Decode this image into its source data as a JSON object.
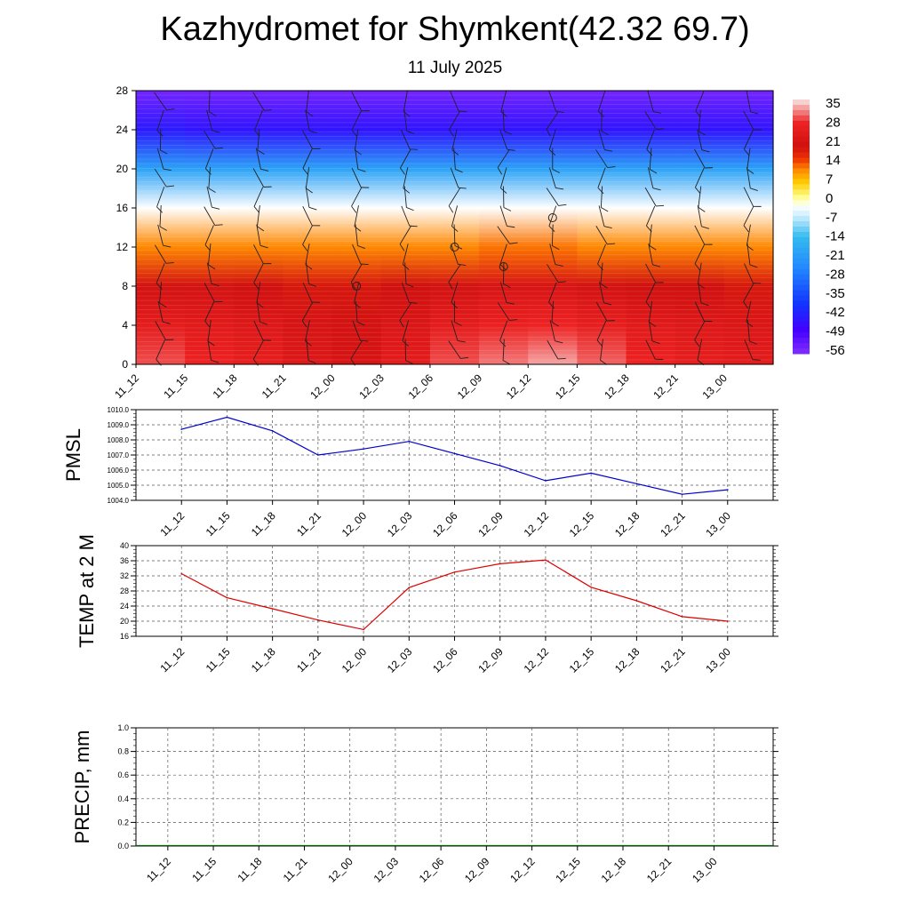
{
  "title": "Kazhydromet for Shymkent(42.32 69.7)",
  "subtitle": "11 July 2025",
  "time_labels": [
    "11_12",
    "11_15",
    "11_18",
    "11_21",
    "12_00",
    "12_03",
    "12_06",
    "12_09",
    "12_12",
    "12_15",
    "12_18",
    "12_21",
    "13_00"
  ],
  "colorbar": {
    "labels": [
      "35",
      "28",
      "21",
      "14",
      "7",
      "0",
      "-7",
      "-14",
      "-21",
      "-28",
      "-35",
      "-42",
      "-49",
      "-56"
    ]
  },
  "chart_data": [
    {
      "type": "heatmap",
      "title": "",
      "ylabel": "",
      "x": [
        "11_12",
        "11_15",
        "11_18",
        "11_21",
        "12_00",
        "12_03",
        "12_06",
        "12_09",
        "12_12",
        "12_15",
        "12_18",
        "12_21",
        "13_00"
      ],
      "yticks": [
        0,
        4,
        8,
        12,
        16,
        20,
        24,
        28
      ],
      "ylim": [
        0,
        28
      ],
      "value_range": [
        -60,
        38
      ],
      "series": [
        {
          "values": [
            [
              32,
              30,
              28,
              25,
              23,
              27,
              32,
              34,
              36,
              33,
              30,
              28,
              27
            ],
            [
              27,
              26,
              25,
              23,
              22,
              24,
              27,
              29,
              30,
              28,
              26,
              25,
              24
            ],
            [
              22,
              22,
              21,
              20,
              20,
              21,
              22,
              23,
              23,
              22,
              21,
              21,
              20
            ],
            [
              12,
              12,
              12,
              12,
              12,
              12,
              12,
              13,
              13,
              12,
              12,
              12,
              12
            ],
            [
              -2,
              -2,
              -2,
              -2,
              -2,
              -2,
              -2,
              -2,
              -2,
              -2,
              -2,
              -2,
              -2
            ],
            [
              -20,
              -20,
              -20,
              -20,
              -20,
              -20,
              -20,
              -20,
              -20,
              -20,
              -20,
              -20,
              -20
            ],
            [
              -45,
              -46,
              -46,
              -46,
              -46,
              -46,
              -46,
              -46,
              -46,
              -46,
              -46,
              -46,
              -46
            ],
            [
              -57,
              -57,
              -57,
              -57,
              -57,
              -57,
              -57,
              -57,
              -57,
              -57,
              -57,
              -57,
              -57
            ]
          ]
        }
      ]
    },
    {
      "type": "line",
      "title": "",
      "ylabel": "PMSL",
      "x": [
        "11_12",
        "11_15",
        "11_18",
        "11_21",
        "12_00",
        "12_03",
        "12_06",
        "12_09",
        "12_12",
        "12_15",
        "12_18",
        "12_21",
        "13_00"
      ],
      "yticks": [
        "1004.0",
        "1005.0",
        "1006.0",
        "1007.0",
        "1008.0",
        "1009.0",
        "1010.0"
      ],
      "ylim": [
        1004.0,
        1010.0
      ],
      "series": [
        {
          "color": "#0000cc",
          "values": [
            1008.7,
            1009.5,
            1008.6,
            1007.0,
            1007.4,
            1007.9,
            1007.1,
            1006.3,
            1005.3,
            1005.8,
            1005.1,
            1004.4,
            1004.7
          ]
        }
      ]
    },
    {
      "type": "line",
      "title": "",
      "ylabel": "TEMP at 2 M",
      "x": [
        "11_12",
        "11_15",
        "11_18",
        "11_21",
        "12_00",
        "12_03",
        "12_06",
        "12_09",
        "12_12",
        "12_15",
        "12_18",
        "12_21",
        "13_00"
      ],
      "yticks": [
        "16",
        "20",
        "24",
        "28",
        "32",
        "36",
        "40"
      ],
      "ylim": [
        16,
        40
      ],
      "series": [
        {
          "color": "#dd0000",
          "values": [
            32.6,
            26.2,
            23.3,
            20.3,
            17.8,
            28.9,
            33.0,
            35.2,
            36.2,
            29.0,
            25.4,
            21.2,
            20.0
          ]
        }
      ]
    },
    {
      "type": "bar",
      "title": "",
      "ylabel": "PRECIP, mm",
      "x": [
        "11_12",
        "11_15",
        "11_18",
        "11_21",
        "12_00",
        "12_03",
        "12_06",
        "12_09",
        "12_12",
        "12_15",
        "12_18",
        "12_21",
        "13_00"
      ],
      "yticks": [
        "0.0",
        "0.2",
        "0.4",
        "0.6",
        "0.8",
        "1.0"
      ],
      "ylim": [
        0.0,
        1.0
      ],
      "series": [
        {
          "color": "#006400",
          "values": [
            0,
            0,
            0,
            0,
            0,
            0,
            0,
            0,
            0,
            0,
            0,
            0,
            0
          ]
        }
      ]
    }
  ]
}
